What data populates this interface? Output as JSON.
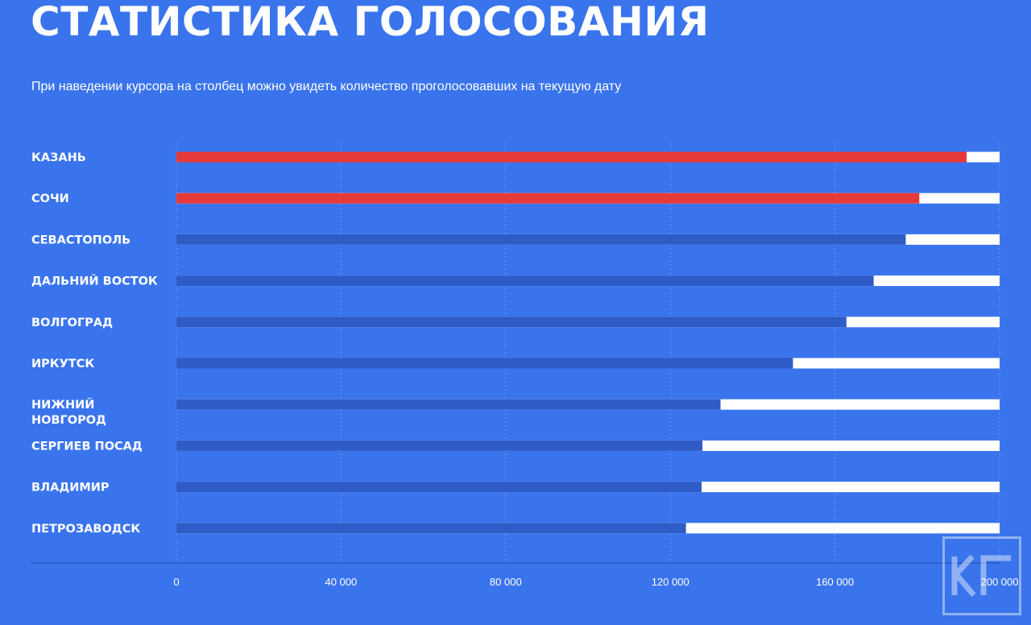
{
  "header": {
    "title": "СТАТИСТИКА ГОЛОСОВАНИЯ",
    "subtitle": "При наведении курсора на столбец можно увидеть количество проголосовавших на текущую дату"
  },
  "colors": {
    "background": "#3a74ec",
    "highlight_bar": "#e63a3a",
    "normal_bar": "#2f5bc7",
    "remainder": "#ffffff"
  },
  "watermark": {
    "logo_text": "КГ"
  },
  "chart_data": {
    "type": "bar",
    "orientation": "horizontal",
    "categories": [
      "КАЗАНЬ",
      "СОЧИ",
      "СЕВАСТОПОЛЬ",
      "ДАЛЬНИЙ ВОСТОК",
      "ВОЛГОГРАД",
      "ИРКУТСК",
      "НИЖНИЙ НОВГОРОД",
      "СЕРГИЕВ ПОСАД",
      "ВЛАДИМИР",
      "ПЕТРОЗАВОДСК"
    ],
    "category_lines": [
      [
        "КАЗАНЬ"
      ],
      [
        "СОЧИ"
      ],
      [
        "СЕВАСТОПОЛЬ"
      ],
      [
        "ДАЛЬНИЙ ВОСТОК"
      ],
      [
        "ВОЛГОГРАД"
      ],
      [
        "ИРКУТСК"
      ],
      [
        "НИЖНИЙ",
        "НОВГОРОД"
      ],
      [
        "СЕРГИЕВ ПОСАД"
      ],
      [
        "ВЛАДИМИР"
      ],
      [
        "ПЕТРОЗАВОДСК"
      ]
    ],
    "values": [
      192000,
      180500,
      177200,
      169400,
      162800,
      149800,
      132200,
      127800,
      127600,
      123800
    ],
    "highlighted": [
      true,
      true,
      false,
      false,
      false,
      false,
      false,
      false,
      false,
      false
    ],
    "xlim": [
      0,
      200000
    ],
    "xticks": [
      0,
      40000,
      80000,
      120000,
      160000,
      200000
    ],
    "xtick_labels": [
      "0",
      "40 000",
      "80 000",
      "120 000",
      "160 000",
      "200 000"
    ],
    "grid": "vertical dashed",
    "legend": "none"
  }
}
